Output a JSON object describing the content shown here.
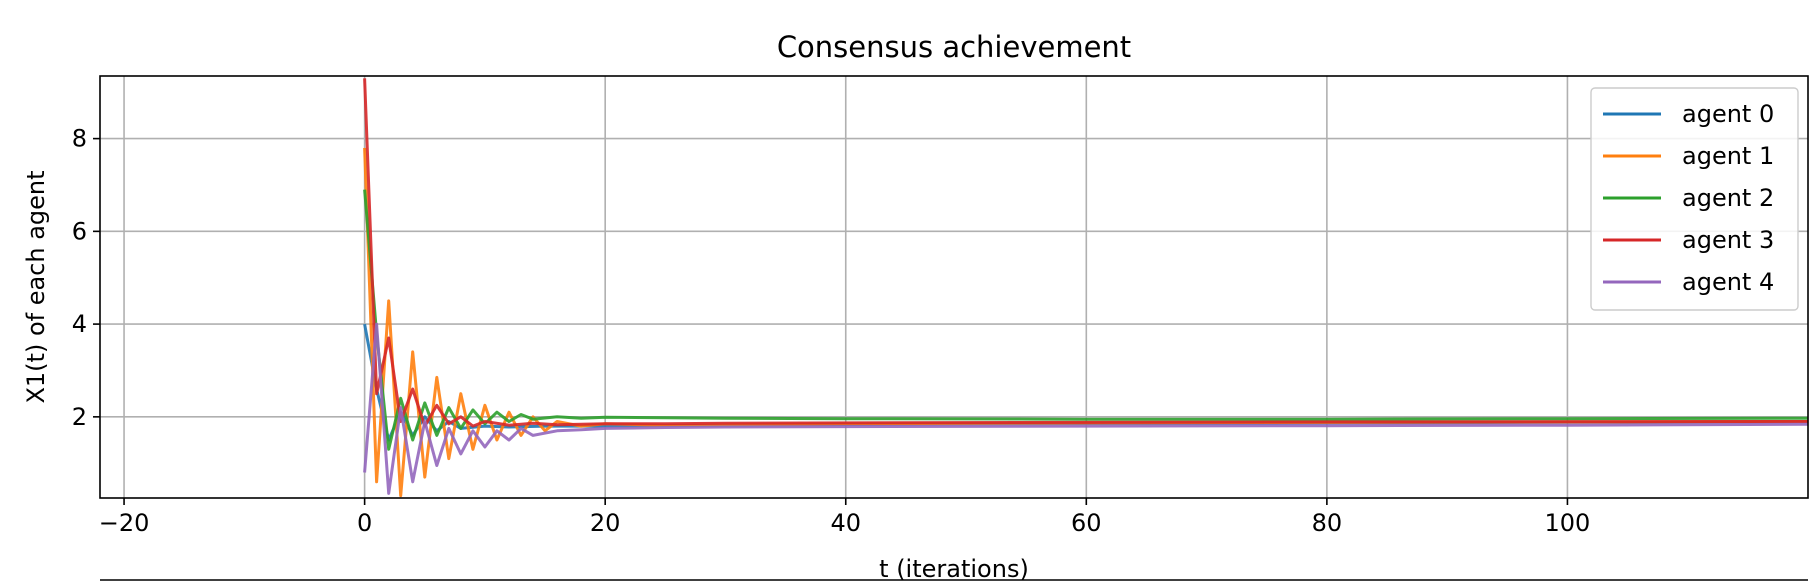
{
  "chart_data": {
    "type": "line",
    "title": "Consensus achievement",
    "xlabel": "t (iterations)",
    "ylabel": "X1(t) of each agent",
    "xlim": [
      -22,
      120
    ],
    "ylim": [
      0.25,
      9.35
    ],
    "xticks": [
      -20,
      0,
      20,
      40,
      60,
      80,
      100
    ],
    "xtick_labels": [
      "−20",
      "0",
      "20",
      "40",
      "60",
      "80",
      "100"
    ],
    "yticks": [
      2,
      4,
      6,
      8
    ],
    "ytick_labels": [
      "2",
      "4",
      "6",
      "8"
    ],
    "grid": true,
    "legend": "top-right",
    "series": [
      {
        "name": "agent 0",
        "color": "#1f77b4",
        "x": [
          0,
          1,
          2,
          3,
          4,
          5,
          6,
          7,
          8,
          10,
          12,
          15,
          20,
          30,
          50,
          80,
          120
        ],
        "y": [
          4.0,
          2.6,
          1.5,
          2.1,
          1.6,
          2.0,
          1.7,
          1.9,
          1.75,
          1.8,
          1.78,
          1.8,
          1.8,
          1.82,
          1.85,
          1.87,
          1.9
        ]
      },
      {
        "name": "agent 1",
        "color": "#ff7f0e",
        "x": [
          0,
          1,
          2,
          3,
          4,
          5,
          6,
          7,
          8,
          9,
          10,
          11,
          12,
          13,
          14,
          15,
          16,
          18,
          20,
          25,
          30,
          40,
          60,
          80,
          120
        ],
        "y": [
          7.8,
          0.6,
          4.5,
          0.3,
          3.4,
          0.7,
          2.85,
          1.1,
          2.5,
          1.3,
          2.25,
          1.5,
          2.1,
          1.6,
          2.0,
          1.7,
          1.9,
          1.8,
          1.85,
          1.82,
          1.83,
          1.85,
          1.87,
          1.88,
          1.9
        ]
      },
      {
        "name": "agent 2",
        "color": "#2ca02c",
        "x": [
          0,
          1,
          2,
          3,
          4,
          5,
          6,
          7,
          8,
          9,
          10,
          11,
          12,
          13,
          14,
          16,
          18,
          20,
          25,
          30,
          40,
          60,
          80,
          100,
          120
        ],
        "y": [
          6.9,
          3.8,
          1.3,
          2.4,
          1.5,
          2.3,
          1.6,
          2.2,
          1.75,
          2.15,
          1.85,
          2.1,
          1.9,
          2.05,
          1.95,
          2.0,
          1.97,
          1.99,
          1.98,
          1.97,
          1.96,
          1.95,
          1.95,
          1.96,
          1.97
        ]
      },
      {
        "name": "agent 3",
        "color": "#d62728",
        "x": [
          0,
          1,
          2,
          3,
          4,
          5,
          6,
          7,
          8,
          9,
          10,
          12,
          14,
          16,
          20,
          25,
          30,
          40,
          60,
          80,
          120
        ],
        "y": [
          9.3,
          2.5,
          3.7,
          1.9,
          2.6,
          1.8,
          2.25,
          1.85,
          2.0,
          1.8,
          1.9,
          1.82,
          1.86,
          1.83,
          1.85,
          1.85,
          1.86,
          1.87,
          1.88,
          1.89,
          1.9
        ]
      },
      {
        "name": "agent 4",
        "color": "#9467bd",
        "x": [
          0,
          1,
          2,
          3,
          4,
          5,
          6,
          7,
          8,
          9,
          10,
          11,
          12,
          13,
          14,
          16,
          18,
          20,
          25,
          30,
          40,
          60,
          80,
          100,
          120
        ],
        "y": [
          0.8,
          4.0,
          0.35,
          2.2,
          0.6,
          1.9,
          0.95,
          1.75,
          1.2,
          1.7,
          1.35,
          1.7,
          1.5,
          1.75,
          1.6,
          1.7,
          1.72,
          1.75,
          1.77,
          1.78,
          1.79,
          1.8,
          1.81,
          1.82,
          1.84
        ]
      }
    ]
  }
}
